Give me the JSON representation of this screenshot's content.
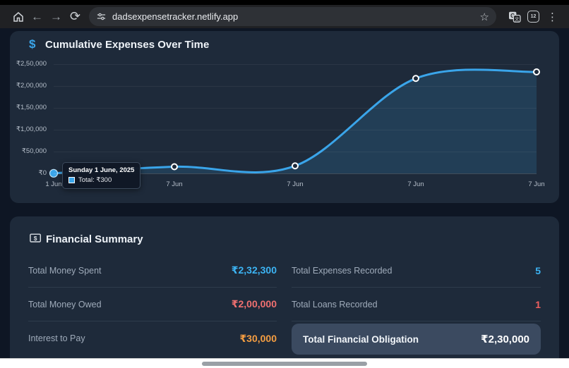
{
  "browser": {
    "url": "dadsexpensetracker.netlify.app",
    "tab_counter": "12",
    "glyphs": {
      "back": "←",
      "forward": "→",
      "reload": "⟳",
      "star": "☆",
      "kebab": "⋮"
    }
  },
  "chart_card": {
    "title": "Cumulative Expenses Over Time",
    "icon": "dollar-icon",
    "icon_glyph": "$"
  },
  "chart_data": {
    "type": "area",
    "title": "Cumulative Expenses Over Time",
    "x_labels": [
      "1 Jun",
      "7 Jun",
      "7 Jun",
      "7 Jun",
      "7 Jun"
    ],
    "values": [
      300,
      15300,
      17300,
      217300,
      232300
    ],
    "y_ticks": [
      "₹2,50,000",
      "₹2,00,000",
      "₹1,50,000",
      "₹1,00,000",
      "₹50,000",
      "₹0"
    ],
    "ylim": [
      0,
      250000
    ],
    "grid": true,
    "legend": "none",
    "line_color": "#3aa5ea",
    "fill_color": "rgba(58,165,234,0.16)",
    "hovered_point_index": 0,
    "tooltip": {
      "title": "Sunday 1 June, 2025",
      "label": "Total: ₹300",
      "swatch_color": "#3aa5ea"
    }
  },
  "summary_card": {
    "title": "Financial Summary",
    "icon": "banknote-icon",
    "left_rows": [
      {
        "label": "Total Money Spent",
        "value": "₹2,32,300",
        "color": "#3cb4f4"
      },
      {
        "label": "Total Money Owed",
        "value": "₹2,00,000",
        "color": "#f07070"
      },
      {
        "label": "Interest to Pay",
        "value": "₹30,000",
        "color": "#f59e42"
      }
    ],
    "right_rows": [
      {
        "label": "Total Expenses Recorded",
        "value": "5",
        "color": "#3cb4f4"
      },
      {
        "label": "Total Loans Recorded",
        "value": "1",
        "color": "#ef5f5f"
      }
    ],
    "obligation": {
      "label": "Total Financial Obligation",
      "value": "₹2,30,000"
    }
  },
  "colors": {
    "accent": "#3aa5ea",
    "card_bg": "#1e2a3a",
    "page_bg": "#0e1624",
    "obligation_bg": "#3b4a60"
  }
}
